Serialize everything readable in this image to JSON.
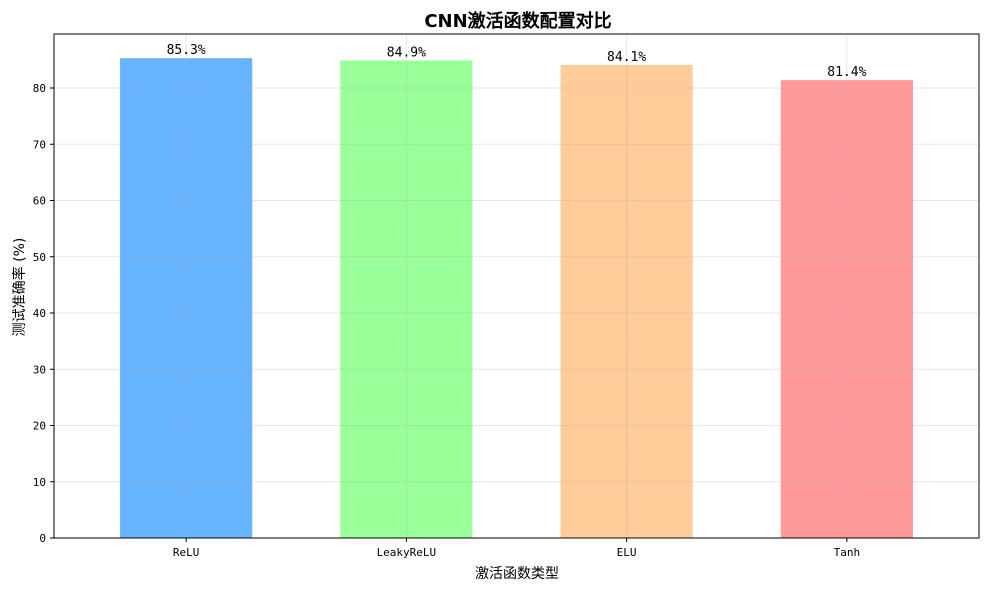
{
  "chart_data": {
    "type": "bar",
    "title": "CNN激活函数配置对比",
    "xlabel": "激活函数类型",
    "ylabel": "测试准确率 (%)",
    "categories": [
      "ReLU",
      "LeakyReLU",
      "ELU",
      "Tanh"
    ],
    "values": [
      85.3,
      84.9,
      84.1,
      81.4
    ],
    "value_labels": [
      "85.3%",
      "84.9%",
      "84.1%",
      "81.4%"
    ],
    "colors": [
      "#66b3ff",
      "#99ff99",
      "#ffcc99",
      "#ff9999"
    ],
    "ylim": [
      0,
      89.6
    ],
    "yticks": [
      0,
      10,
      20,
      30,
      40,
      50,
      60,
      70,
      80
    ],
    "grid": true,
    "legend": "none"
  }
}
